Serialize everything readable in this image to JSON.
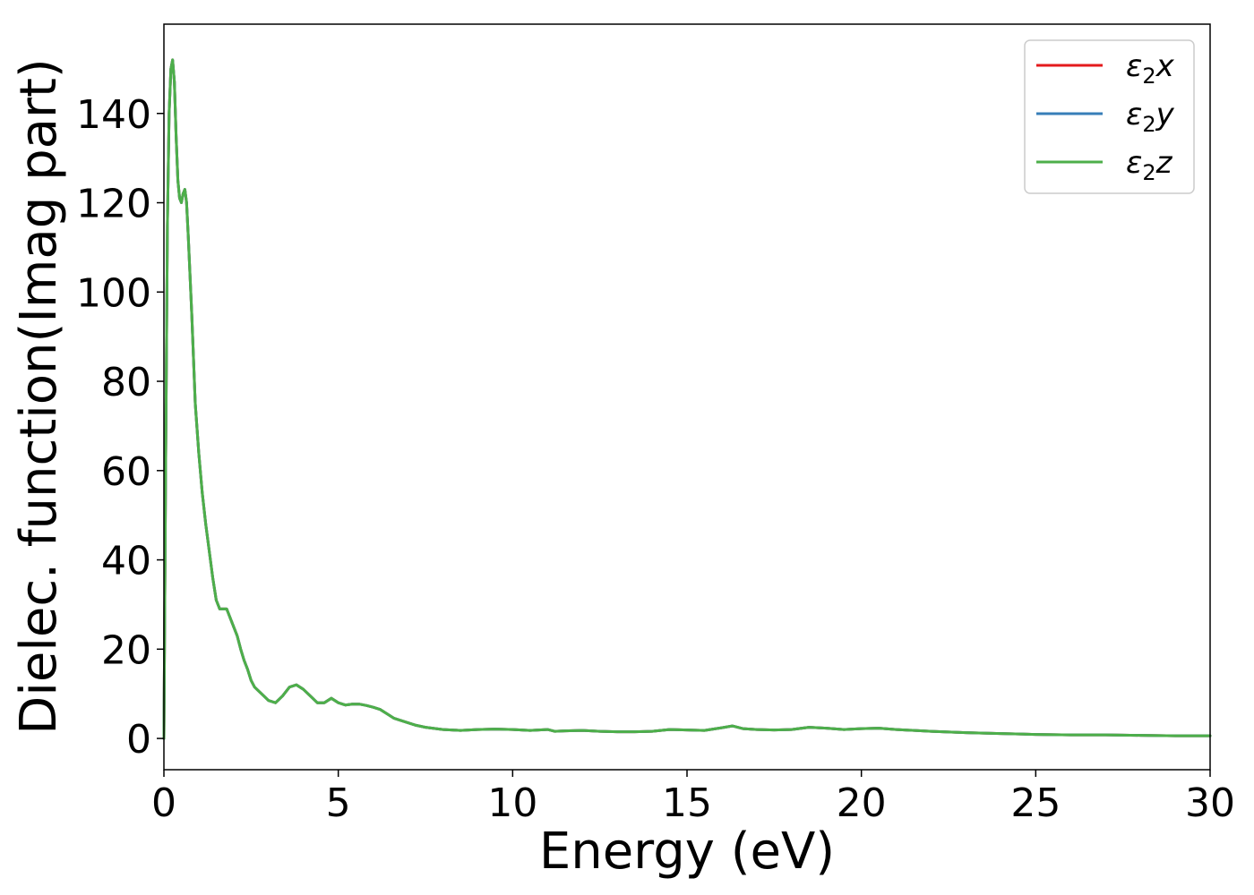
{
  "chart_data": {
    "type": "line",
    "title": "",
    "xlabel": "Energy (eV)",
    "ylabel": "Dielec. function(Imag part)",
    "xlim": [
      0,
      30
    ],
    "ylim": [
      -7,
      160
    ],
    "x_ticks": [
      "0",
      "5",
      "10",
      "15",
      "20",
      "25",
      "30"
    ],
    "y_ticks": [
      "0",
      "20",
      "40",
      "60",
      "80",
      "100",
      "120",
      "140"
    ],
    "grid": false,
    "legend_position": "top-right",
    "colors": {
      "x": "#e41a1c",
      "y": "#377eb8",
      "z": "#4daf4a"
    },
    "legend": [
      {
        "symbol": "ε",
        "sub": "2",
        "axis": "x",
        "color": "#e41a1c"
      },
      {
        "symbol": "ε",
        "sub": "2",
        "axis": "y",
        "color": "#377eb8"
      },
      {
        "symbol": "ε",
        "sub": "2",
        "axis": "z",
        "color": "#4daf4a"
      }
    ],
    "x": [
      0,
      0.05,
      0.1,
      0.15,
      0.2,
      0.25,
      0.3,
      0.35,
      0.4,
      0.45,
      0.5,
      0.55,
      0.6,
      0.65,
      0.7,
      0.8,
      0.9,
      1.0,
      1.1,
      1.2,
      1.3,
      1.4,
      1.5,
      1.6,
      1.7,
      1.8,
      1.9,
      2.0,
      2.1,
      2.2,
      2.3,
      2.4,
      2.5,
      2.6,
      2.8,
      3.0,
      3.2,
      3.4,
      3.6,
      3.8,
      4.0,
      4.2,
      4.4,
      4.6,
      4.8,
      5.0,
      5.2,
      5.4,
      5.6,
      5.8,
      6.0,
      6.2,
      6.4,
      6.6,
      6.8,
      7.0,
      7.2,
      7.5,
      8.0,
      8.5,
      9.0,
      9.5,
      10.0,
      10.5,
      11.0,
      11.2,
      11.5,
      12.0,
      12.5,
      13.0,
      13.5,
      14.0,
      14.5,
      15.0,
      15.5,
      16.0,
      16.3,
      16.6,
      17.0,
      17.5,
      18.0,
      18.5,
      19.0,
      19.5,
      20.0,
      20.5,
      21.0,
      22.0,
      23.0,
      24.0,
      25.0,
      26.0,
      27.0,
      28.0,
      29.0,
      30.0
    ],
    "series": [
      {
        "name": "ε₂x",
        "color": "#e41a1c",
        "values": [
          0,
          60,
          115,
          140,
          150,
          152,
          147,
          135,
          125,
          121,
          120,
          122,
          123,
          120,
          112,
          95,
          75,
          64,
          55,
          48,
          42,
          36,
          31,
          29,
          29,
          29,
          27,
          25,
          23,
          20,
          17.5,
          15.5,
          13,
          11.5,
          10,
          8.5,
          8,
          9.5,
          11.5,
          12,
          11,
          9.5,
          8,
          8,
          9,
          8,
          7.5,
          7.7,
          7.7,
          7.4,
          7,
          6.5,
          5.5,
          4.5,
          4,
          3.5,
          3,
          2.5,
          2,
          1.8,
          2,
          2.1,
          2,
          1.8,
          2,
          1.6,
          1.7,
          1.8,
          1.6,
          1.5,
          1.5,
          1.6,
          2,
          1.9,
          1.8,
          2.4,
          2.8,
          2.2,
          2,
          1.9,
          2,
          2.5,
          2.3,
          2,
          2.2,
          2.3,
          2,
          1.6,
          1.3,
          1.1,
          0.9,
          0.8,
          0.8,
          0.7,
          0.6,
          0.6
        ]
      },
      {
        "name": "ε₂y",
        "color": "#377eb8",
        "values": [
          0,
          60,
          115,
          140,
          150,
          152,
          147,
          135,
          125,
          121,
          120,
          122,
          123,
          120,
          112,
          95,
          75,
          64,
          55,
          48,
          42,
          36,
          31,
          29,
          29,
          29,
          27,
          25,
          23,
          20,
          17.5,
          15.5,
          13,
          11.5,
          10,
          8.5,
          8,
          9.5,
          11.5,
          12,
          11,
          9.5,
          8,
          8,
          9,
          8,
          7.5,
          7.7,
          7.7,
          7.4,
          7,
          6.5,
          5.5,
          4.5,
          4,
          3.5,
          3,
          2.5,
          2,
          1.8,
          2,
          2.1,
          2,
          1.8,
          2,
          1.6,
          1.7,
          1.8,
          1.6,
          1.5,
          1.5,
          1.6,
          2,
          1.9,
          1.8,
          2.4,
          2.8,
          2.2,
          2,
          1.9,
          2,
          2.5,
          2.3,
          2,
          2.2,
          2.3,
          2,
          1.6,
          1.3,
          1.1,
          0.9,
          0.8,
          0.8,
          0.7,
          0.6,
          0.6
        ]
      },
      {
        "name": "ε₂z",
        "color": "#4daf4a",
        "values": [
          0,
          60,
          115,
          140,
          150,
          152,
          147,
          135,
          125,
          121,
          120,
          122,
          123,
          120,
          112,
          95,
          75,
          64,
          55,
          48,
          42,
          36,
          31,
          29,
          29,
          29,
          27,
          25,
          23,
          20,
          17.5,
          15.5,
          13,
          11.5,
          10,
          8.5,
          8,
          9.5,
          11.5,
          12,
          11,
          9.5,
          8,
          8,
          9,
          8,
          7.5,
          7.7,
          7.7,
          7.4,
          7,
          6.5,
          5.5,
          4.5,
          4,
          3.5,
          3,
          2.5,
          2,
          1.8,
          2,
          2.1,
          2,
          1.8,
          2,
          1.6,
          1.7,
          1.8,
          1.6,
          1.5,
          1.5,
          1.6,
          2,
          1.9,
          1.8,
          2.4,
          2.8,
          2.2,
          2,
          1.9,
          2,
          2.5,
          2.3,
          2,
          2.2,
          2.3,
          2,
          1.6,
          1.3,
          1.1,
          0.9,
          0.8,
          0.8,
          0.7,
          0.6,
          0.6
        ]
      }
    ]
  }
}
